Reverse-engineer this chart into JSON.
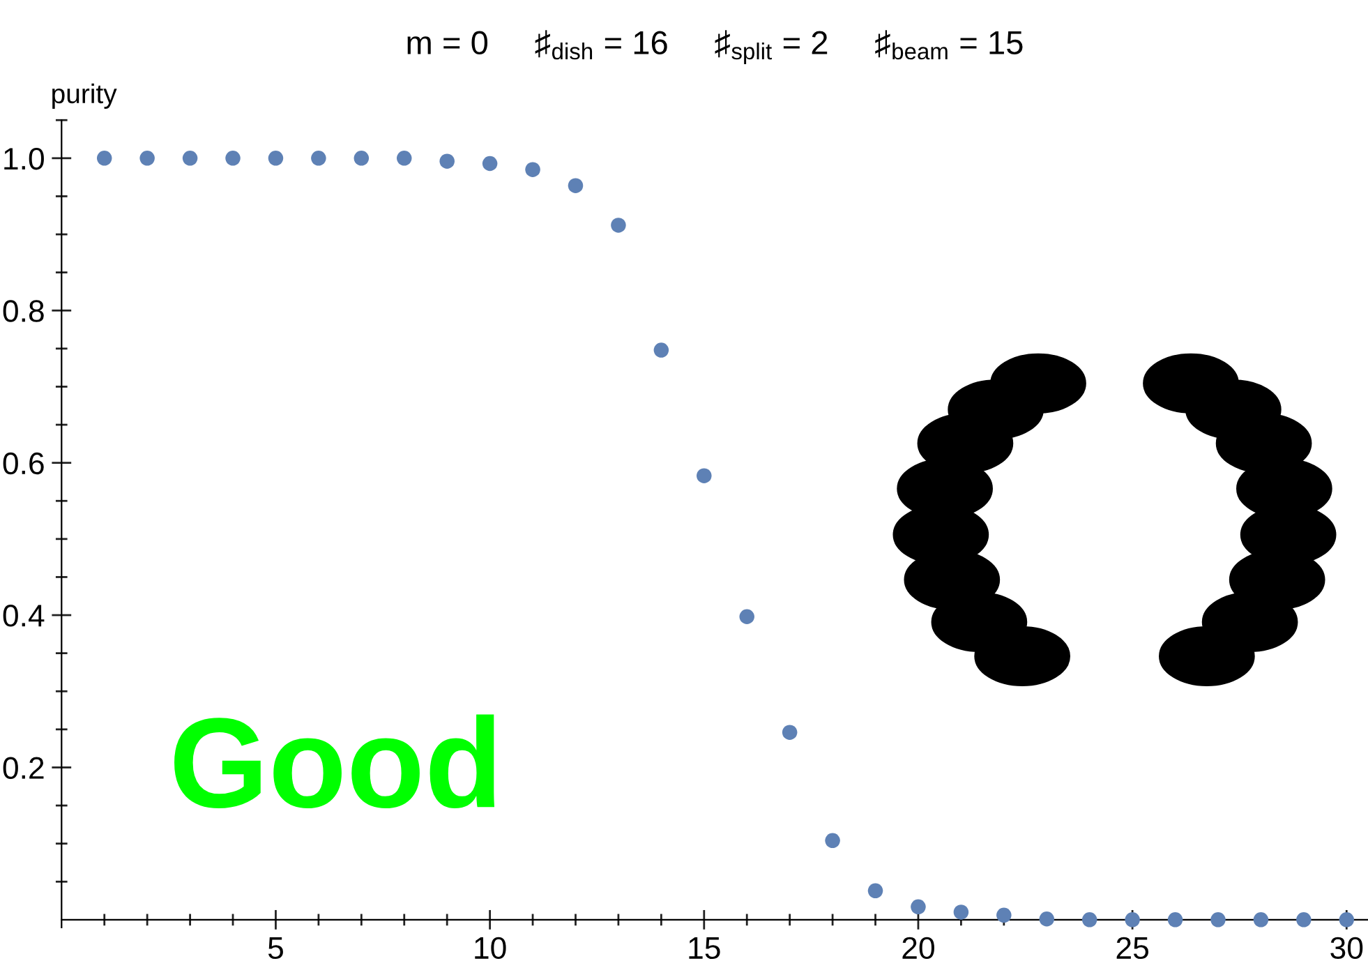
{
  "chart_data": {
    "type": "scatter",
    "title": "m = 0     ♯$_{dish}$ = 16     ♯$_{split}$ = 2     ♯$_{beam}$ = 15",
    "ylabel": "purity",
    "annotations": [
      "Good"
    ],
    "x": [
      1,
      2,
      3,
      4,
      5,
      6,
      7,
      8,
      9,
      10,
      11,
      12,
      13,
      14,
      15,
      16,
      17,
      18,
      19,
      20,
      21,
      22,
      23,
      24,
      25,
      26,
      27,
      28,
      29,
      30
    ],
    "series": [
      {
        "color": "#5e81b5",
        "values": [
          1.0,
          1.0,
          1.0,
          1.0,
          1.0,
          1.0,
          1.0,
          1.0,
          0.996,
          0.993,
          0.985,
          0.964,
          0.912,
          0.748,
          0.583,
          0.398,
          0.246,
          0.104,
          0.038,
          0.017,
          0.01,
          0.006,
          0.001,
          0,
          0,
          0,
          0,
          0,
          0,
          0
        ]
      }
    ],
    "marker": "circle",
    "xlim": [
      0,
      30.5
    ],
    "ylim": [
      -0.01,
      1.05
    ],
    "xticks": [
      {
        "value": 1,
        "label": null
      },
      {
        "value": 2,
        "label": null
      },
      {
        "value": 3,
        "label": null
      },
      {
        "value": 4,
        "label": null
      },
      5,
      {
        "value": 6,
        "label": null
      },
      {
        "value": 7,
        "label": null
      },
      {
        "value": 8,
        "label": null
      },
      {
        "value": 9,
        "label": null
      },
      10,
      {
        "value": 11,
        "label": null
      },
      {
        "value": 12,
        "label": null
      },
      {
        "value": 13,
        "label": null
      },
      {
        "value": 14,
        "label": null
      },
      15,
      {
        "value": 16,
        "label": null
      },
      {
        "value": 17,
        "label": null
      },
      {
        "value": 18,
        "label": null
      },
      {
        "value": 19,
        "label": null
      },
      20,
      {
        "value": 21,
        "label": null
      },
      {
        "value": 22,
        "label": null
      },
      {
        "value": 23,
        "label": null
      },
      {
        "value": 24,
        "label": null
      },
      25,
      {
        "value": 26,
        "label": null
      },
      {
        "value": 27,
        "label": null
      },
      {
        "value": 28,
        "label": null
      },
      {
        "value": 29,
        "label": null
      },
      30
    ],
    "yticks": [
      {
        "value": 0.05,
        "label": null
      },
      {
        "value": 0.1,
        "label": null
      },
      {
        "value": 0.15,
        "label": null
      },
      0.2,
      {
        "value": 0.25,
        "label": null
      },
      {
        "value": 0.3,
        "label": null
      },
      {
        "value": 0.35,
        "label": null
      },
      0.4,
      {
        "value": 0.45,
        "label": null
      },
      {
        "value": 0.5,
        "label": null
      },
      {
        "value": 0.55,
        "label": null
      },
      0.6,
      {
        "value": 0.65,
        "label": null
      },
      {
        "value": 0.7,
        "label": null
      },
      {
        "value": 0.75,
        "label": null
      },
      0.8,
      {
        "value": 0.85,
        "label": null
      },
      {
        "value": 0.9,
        "label": null
      },
      {
        "value": 0.95,
        "label": null
      },
      {
        "value": 1.0,
        "label": "1.0"
      },
      {
        "value": 1.05,
        "label": null
      }
    ],
    "grid": false,
    "legend": false
  }
}
